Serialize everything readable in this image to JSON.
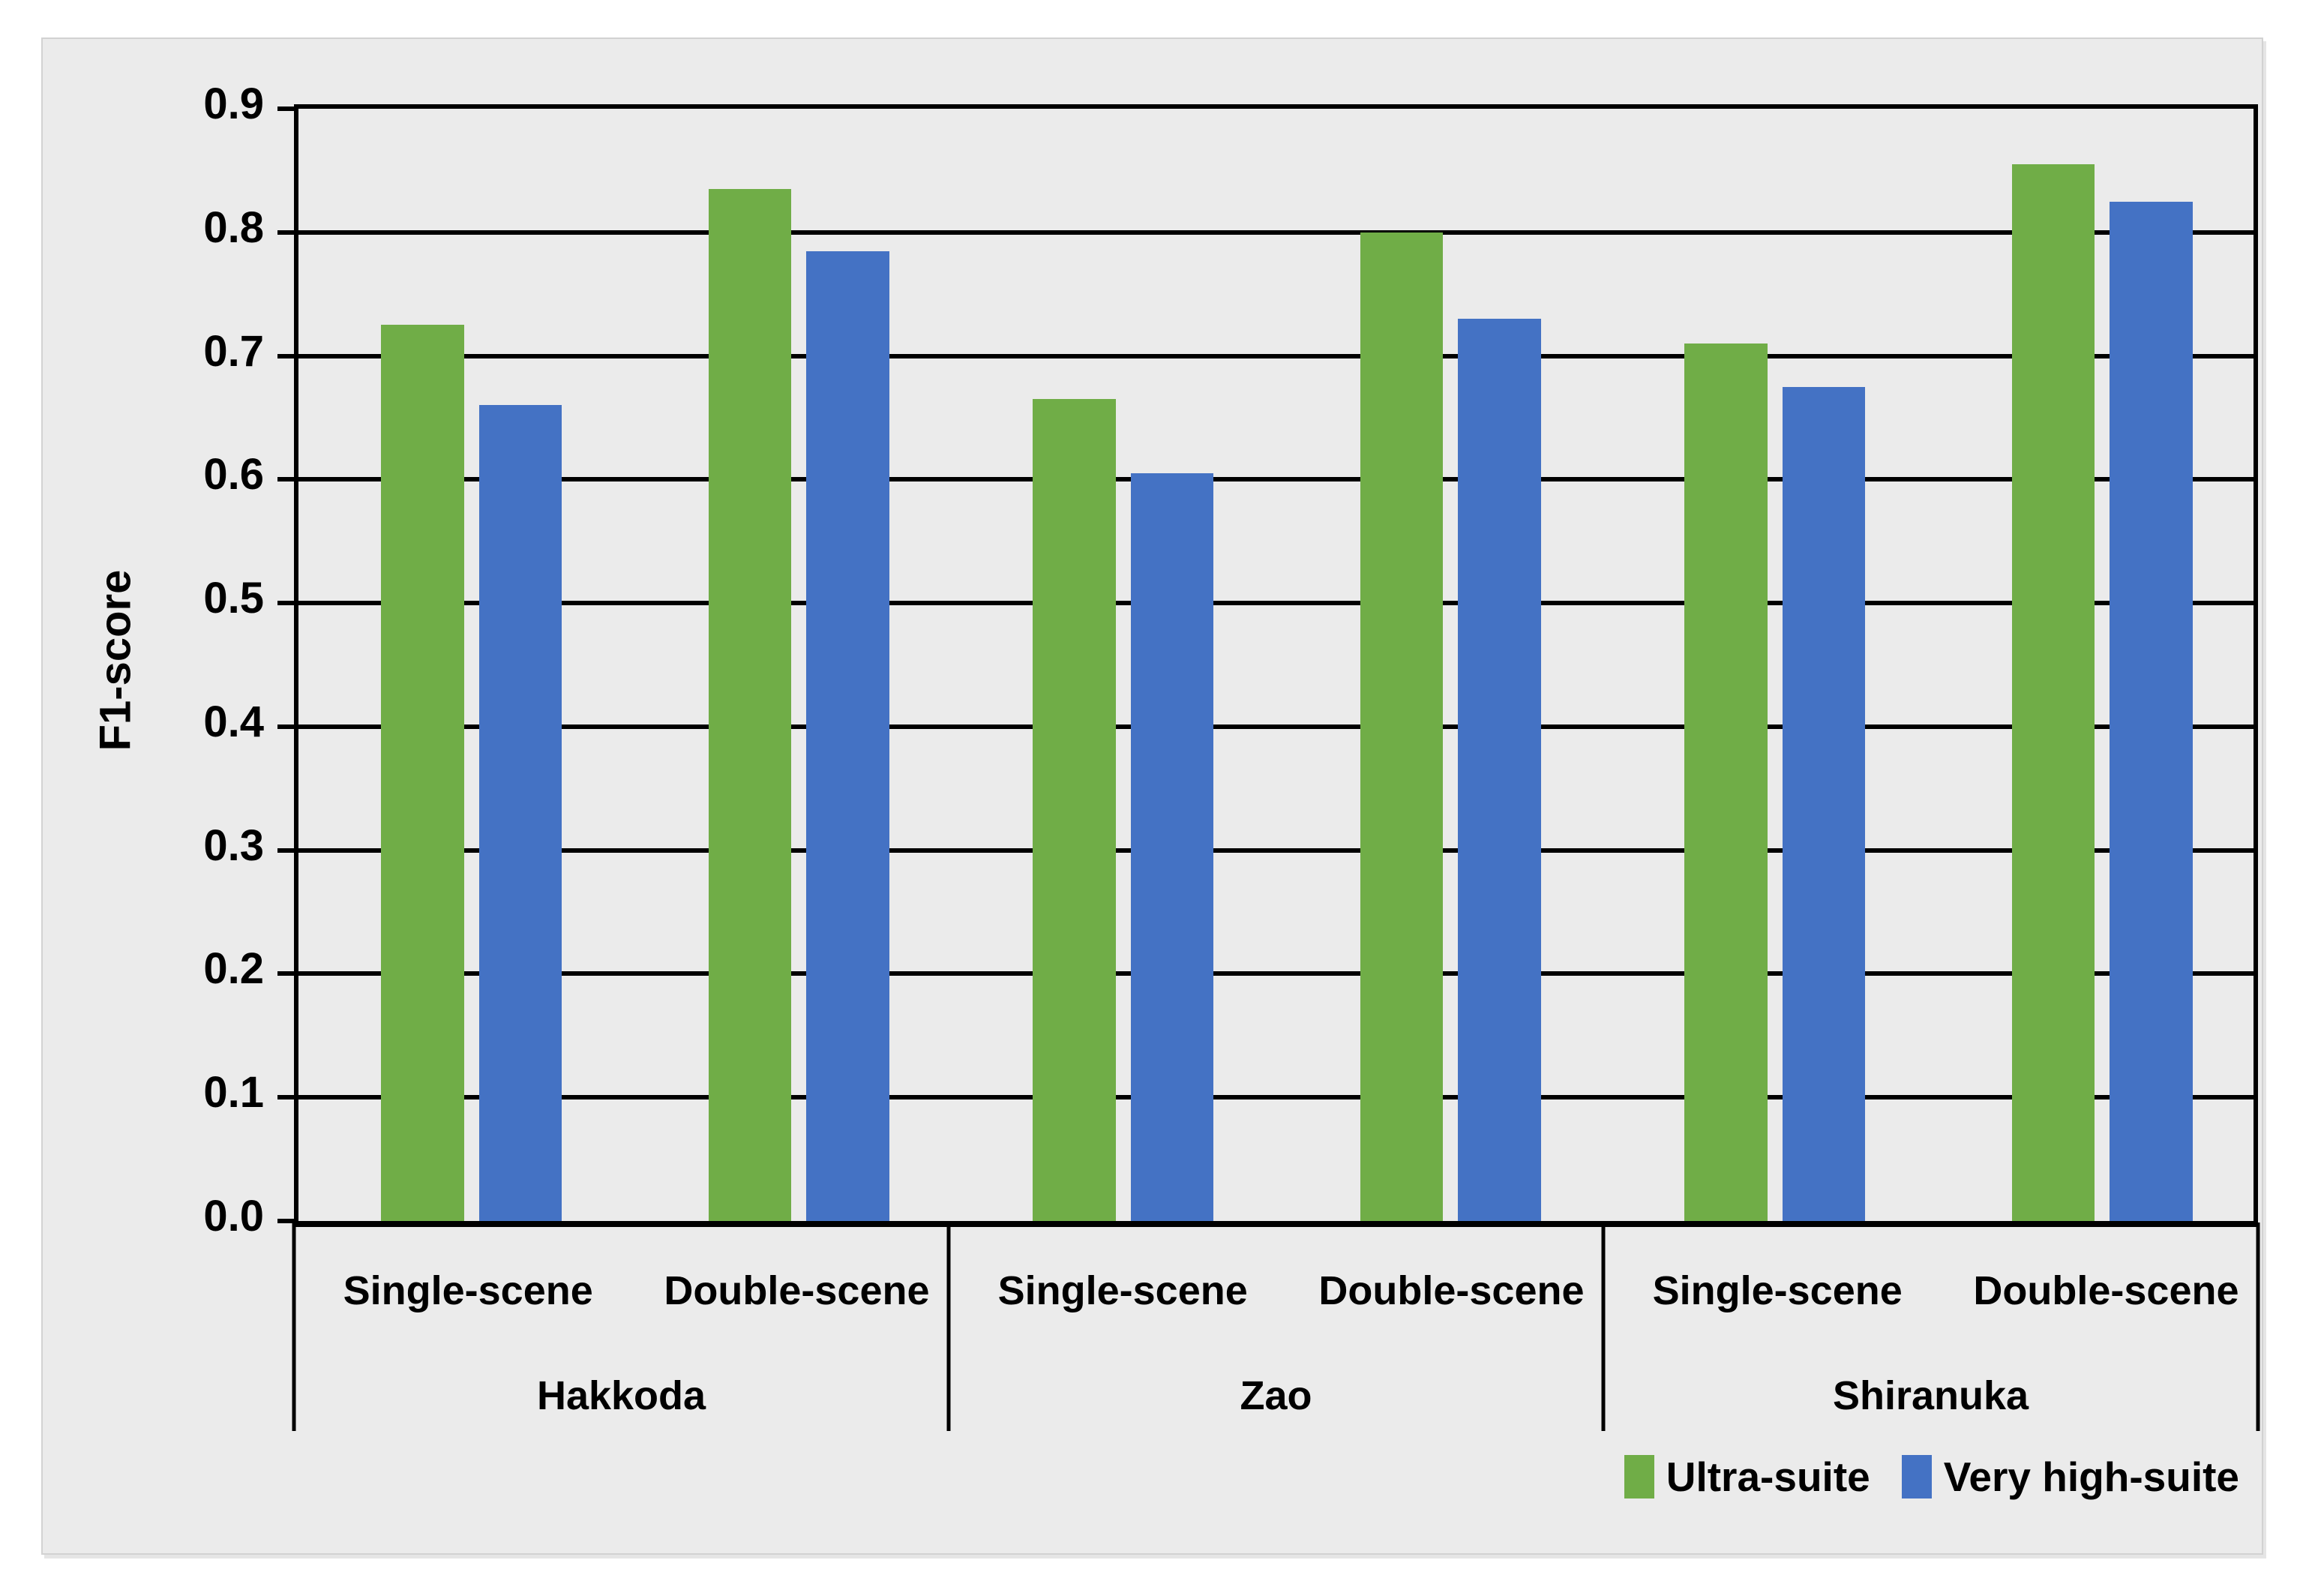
{
  "chart_data": {
    "type": "bar",
    "title": "",
    "ylabel": "F1-score",
    "xlabel": "",
    "ylim": [
      0.0,
      0.9
    ],
    "ytick_step": 0.1,
    "yticks": [
      "0.0",
      "0.1",
      "0.2",
      "0.3",
      "0.4",
      "0.5",
      "0.6",
      "0.7",
      "0.8",
      "0.9"
    ],
    "grid": "horizontal lines every 0.1, black, on gray background",
    "legend_position": "bottom-right",
    "groups": [
      {
        "label": "Hakkoda",
        "subcategories": [
          "Single-scene",
          "Double-scene"
        ]
      },
      {
        "label": "Zao",
        "subcategories": [
          "Single-scene",
          "Double-scene"
        ]
      },
      {
        "label": "Shiranuka",
        "subcategories": [
          "Single-scene",
          "Double-scene"
        ]
      }
    ],
    "categories": [
      "Hakkoda Single-scene",
      "Hakkoda Double-scene",
      "Zao Single-scene",
      "Zao Double-scene",
      "Shiranuka Single-scene",
      "Shiranuka Double-scene"
    ],
    "series": [
      {
        "name": "Ultra-suite",
        "color": "#70AD47",
        "values": [
          0.725,
          0.835,
          0.665,
          0.8,
          0.71,
          0.855
        ]
      },
      {
        "name": "Very high-suite",
        "color": "#4472C4",
        "values": [
          0.66,
          0.785,
          0.605,
          0.73,
          0.675,
          0.825
        ]
      }
    ]
  },
  "colors": {
    "page_bg": "#ffffff",
    "panel_bg": "#ebebeb",
    "grid_line": "#000000",
    "text": "#000000"
  }
}
